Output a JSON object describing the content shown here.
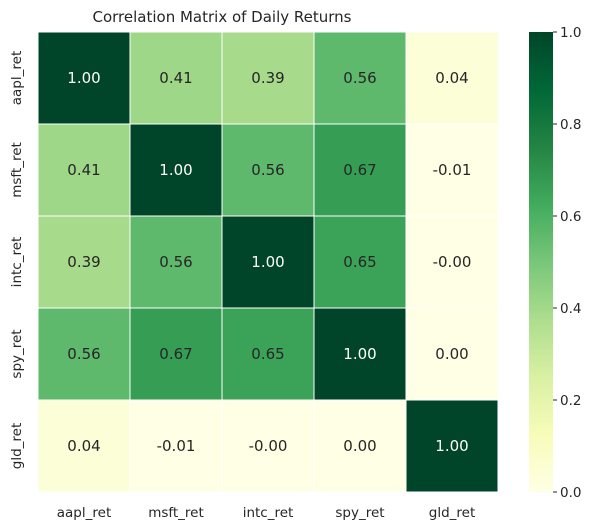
{
  "chart_data": {
    "type": "heatmap",
    "title": "Correlation Matrix of Daily Returns",
    "x_labels": [
      "aapl_ret",
      "msft_ret",
      "intc_ret",
      "spy_ret",
      "gld_ret"
    ],
    "y_labels": [
      "aapl_ret",
      "msft_ret",
      "intc_ret",
      "spy_ret",
      "gld_ret"
    ],
    "values": [
      [
        1.0,
        0.41,
        0.39,
        0.56,
        0.04
      ],
      [
        0.41,
        1.0,
        0.56,
        0.67,
        -0.01
      ],
      [
        0.39,
        0.56,
        1.0,
        0.65,
        -0.0
      ],
      [
        0.56,
        0.67,
        0.65,
        1.0,
        0.0
      ],
      [
        0.04,
        -0.01,
        -0.0,
        0.0,
        1.0
      ]
    ],
    "annotations": [
      [
        "1.00",
        "0.41",
        "0.39",
        "0.56",
        "0.04"
      ],
      [
        "0.41",
        "1.00",
        "0.56",
        "0.67",
        "-0.01"
      ],
      [
        "0.39",
        "0.56",
        "1.00",
        "0.65",
        "-0.00"
      ],
      [
        "0.56",
        "0.67",
        "0.65",
        "1.00",
        "0.00"
      ],
      [
        "0.04",
        "-0.01",
        "-0.00",
        "0.00",
        "1.00"
      ]
    ],
    "colorbar": {
      "range": [
        0.0,
        1.0
      ],
      "ticks": [
        "0.0",
        "0.2",
        "0.4",
        "0.6",
        "0.8",
        "1.0"
      ],
      "colormap": "YlGn"
    }
  }
}
